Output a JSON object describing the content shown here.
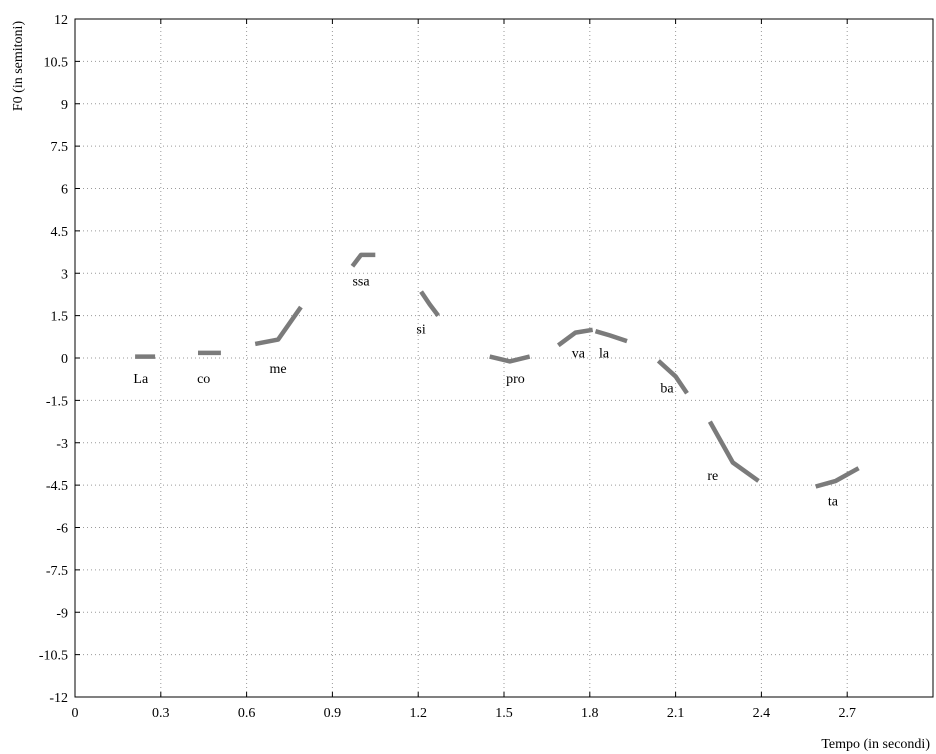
{
  "chart_data": {
    "type": "line",
    "xlabel": "Tempo (in secondi)",
    "ylabel": "F0 (in semitoni)",
    "xlim": [
      0,
      3.0
    ],
    "ylim": [
      -12,
      12
    ],
    "xticks": [
      0,
      0.3,
      0.6,
      0.9,
      1.2,
      1.5,
      1.8,
      2.1,
      2.4,
      2.7
    ],
    "xtick_labels": [
      "0",
      "0.3",
      "0.6",
      "0.9",
      "1.2",
      "1.5",
      "1.8",
      "2.1",
      "2.4",
      "2.7"
    ],
    "yticks": [
      12,
      10.5,
      9,
      7.5,
      6,
      4.5,
      3,
      1.5,
      0,
      -1.5,
      -3,
      -4.5,
      -6,
      -7.5,
      -9,
      -10.5,
      -12
    ],
    "ytick_labels": [
      "12",
      "10.5",
      "9",
      "7.5",
      "6",
      "4.5",
      "3",
      "1.5",
      "0",
      "-1.5",
      "-3",
      "-4.5",
      "-6",
      "-7.5",
      "-9",
      "-10.5",
      "-12"
    ],
    "grid": true,
    "segments": [
      {
        "label": "La",
        "label_pos": [
          0.23,
          -0.7
        ],
        "x": [
          0.21,
          0.28
        ],
        "y": [
          0.05,
          0.05
        ]
      },
      {
        "label": "co",
        "label_pos": [
          0.45,
          -0.7
        ],
        "x": [
          0.43,
          0.51
        ],
        "y": [
          0.18,
          0.18
        ]
      },
      {
        "label": "me",
        "label_pos": [
          0.71,
          -0.35
        ],
        "x": [
          0.63,
          0.71,
          0.79
        ],
        "y": [
          0.5,
          0.65,
          1.8
        ]
      },
      {
        "label": "ssa",
        "label_pos": [
          1.0,
          2.75
        ],
        "x": [
          0.97,
          1.0,
          1.05
        ],
        "y": [
          3.25,
          3.65,
          3.65
        ]
      },
      {
        "label": "si",
        "label_pos": [
          1.21,
          1.05
        ],
        "x": [
          1.21,
          1.24,
          1.27
        ],
        "y": [
          2.35,
          1.9,
          1.5
        ]
      },
      {
        "label": "pro",
        "label_pos": [
          1.54,
          -0.7
        ],
        "x": [
          1.45,
          1.52,
          1.59
        ],
        "y": [
          0.05,
          -0.12,
          0.05
        ]
      },
      {
        "label": "va",
        "label_pos": [
          1.76,
          0.2
        ],
        "x": [
          1.69,
          1.75,
          1.81
        ],
        "y": [
          0.45,
          0.9,
          1.0
        ]
      },
      {
        "label": "la",
        "label_pos": [
          1.85,
          0.2
        ],
        "x": [
          1.82,
          1.87,
          1.93
        ],
        "y": [
          0.95,
          0.8,
          0.6
        ]
      },
      {
        "label": "ba",
        "label_pos": [
          2.07,
          -1.05
        ],
        "x": [
          2.04,
          2.1,
          2.14
        ],
        "y": [
          -0.1,
          -0.65,
          -1.25
        ]
      },
      {
        "label": "re",
        "label_pos": [
          2.23,
          -4.15
        ],
        "x": [
          2.22,
          2.3,
          2.39
        ],
        "y": [
          -2.25,
          -3.7,
          -4.35
        ]
      },
      {
        "label": "ta",
        "label_pos": [
          2.65,
          -5.05
        ],
        "x": [
          2.59,
          2.66,
          2.74
        ],
        "y": [
          -4.55,
          -4.35,
          -3.9
        ]
      }
    ]
  }
}
